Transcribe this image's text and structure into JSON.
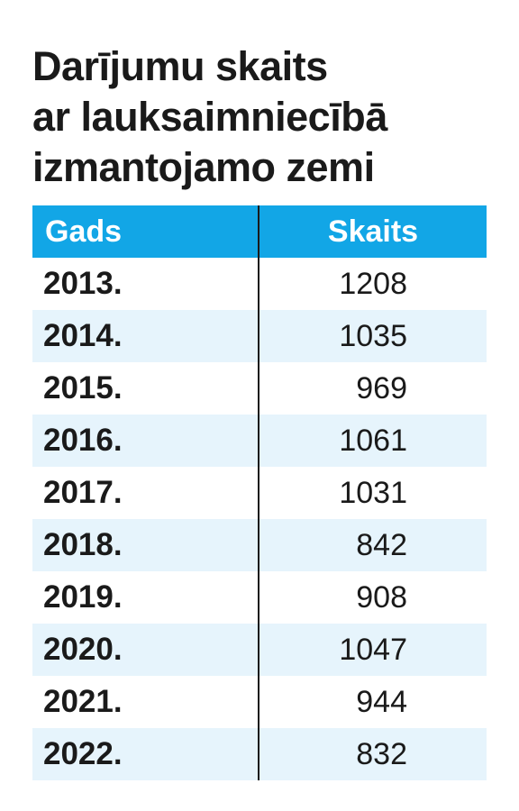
{
  "title_lines": [
    "Darījumu skaits",
    "ar lauksaimniecībā",
    "izmantojamo zemi"
  ],
  "chart_data": {
    "type": "table",
    "title": "Darījumu skaits ar lauksaimniecībā izmantojamo zemi",
    "columns": [
      "Gads",
      "Skaits"
    ],
    "rows": [
      {
        "year": "2013.",
        "count": "1208"
      },
      {
        "year": "2014.",
        "count": "1035"
      },
      {
        "year": "2015.",
        "count": "969"
      },
      {
        "year": "2016.",
        "count": "1061"
      },
      {
        "year": "2017.",
        "count": "1031"
      },
      {
        "year": "2018.",
        "count": "842"
      },
      {
        "year": "2019.",
        "count": "908"
      },
      {
        "year": "2020.",
        "count": "1047"
      },
      {
        "year": "2021.",
        "count": "944"
      },
      {
        "year": "2022.",
        "count": "832"
      }
    ]
  },
  "colors": {
    "header_bg": "#12a6e6",
    "header_text": "#ffffff",
    "alt_row_bg": "#e6f4fc",
    "text": "#1a1a1a"
  }
}
